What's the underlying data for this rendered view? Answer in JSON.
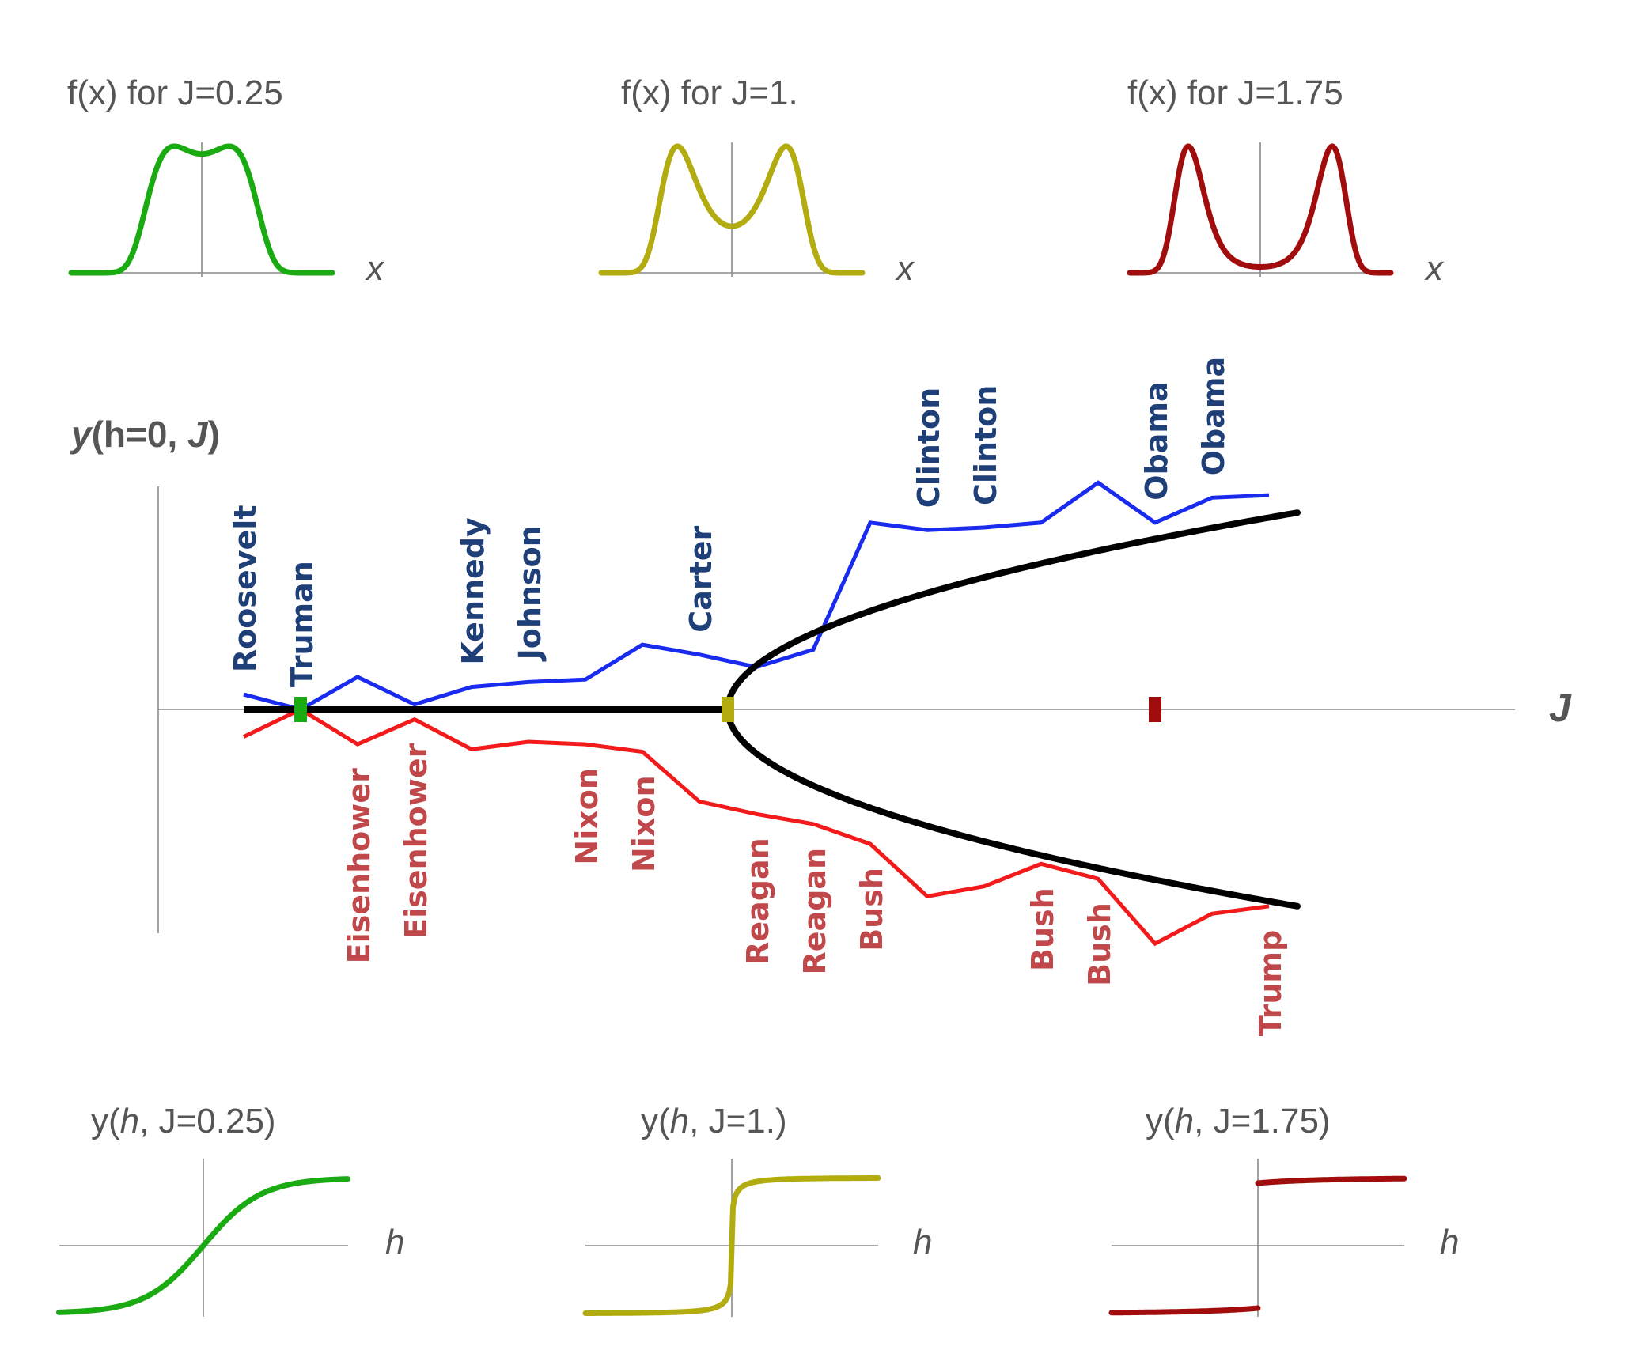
{
  "colors": {
    "j025": "#1aab12",
    "j1": "#b2ac10",
    "j175": "#a10d0d",
    "dem": "#1a2bf0",
    "rep": "#f21a1a",
    "dem_label": "#1f3f78",
    "rep_label": "#c0474a",
    "bifurcation": "#000000"
  },
  "top_panels": [
    {
      "title": "f(x) for J=0.25",
      "J": 0.25,
      "xlabel": "x",
      "color_key": "j025"
    },
    {
      "title": "f(x) for J=1.",
      "J": 1.0,
      "xlabel": "x",
      "color_key": "j1"
    },
    {
      "title": "f(x) for J=1.75",
      "J": 1.75,
      "xlabel": "x",
      "color_key": "j175"
    }
  ],
  "bottom_panels": [
    {
      "title_prefix": "y(",
      "title_var": "h",
      "title_suffix": ", J=0.25)",
      "J": 0.25,
      "xlabel": "h",
      "color_key": "j025"
    },
    {
      "title_prefix": "y(",
      "title_var": "h",
      "title_suffix": ", J=1.)",
      "J": 1.0,
      "xlabel": "h",
      "color_key": "j1"
    },
    {
      "title_prefix": "y(",
      "title_var": "h",
      "title_suffix": ", J=1.75)",
      "J": 1.75,
      "xlabel": "h",
      "color_key": "j175"
    }
  ],
  "main": {
    "ylabel_parts": [
      "y",
      "(h=0, ",
      "J",
      ")"
    ],
    "xlabel": "J",
    "markers": [
      {
        "J": 0.25,
        "color_key": "j025"
      },
      {
        "J": 1.0,
        "color_key": "j1"
      },
      {
        "J": 1.75,
        "color_key": "j175"
      }
    ]
  },
  "chart_data": {
    "type": "line",
    "xlim": [
      0.0,
      2.1
    ],
    "ylim": [
      -0.85,
      0.85
    ],
    "critical_J": 1.0,
    "series": [],
    "dem_points": [
      {
        "J": 0.15,
        "y": 0.06
      },
      {
        "J": 0.25,
        "y": 0.0
      },
      {
        "J": 0.35,
        "y": 0.13
      },
      {
        "J": 0.45,
        "y": 0.02
      },
      {
        "J": 0.55,
        "y": 0.09
      },
      {
        "J": 0.65,
        "y": 0.11
      },
      {
        "J": 0.75,
        "y": 0.12
      },
      {
        "J": 0.85,
        "y": 0.26
      },
      {
        "J": 0.95,
        "y": 0.22
      },
      {
        "J": 1.05,
        "y": 0.17
      },
      {
        "J": 1.15,
        "y": 0.24
      },
      {
        "J": 1.25,
        "y": 0.75
      },
      {
        "J": 1.35,
        "y": 0.72
      },
      {
        "J": 1.45,
        "y": 0.73
      },
      {
        "J": 1.55,
        "y": 0.75
      },
      {
        "J": 1.65,
        "y": 0.91
      },
      {
        "J": 1.75,
        "y": 0.75
      },
      {
        "J": 1.85,
        "y": 0.85
      },
      {
        "J": 1.95,
        "y": 0.86
      }
    ],
    "rep_points": [
      {
        "J": 0.15,
        "y": -0.11
      },
      {
        "J": 0.25,
        "y": 0.0
      },
      {
        "J": 0.35,
        "y": -0.14
      },
      {
        "J": 0.45,
        "y": -0.04
      },
      {
        "J": 0.55,
        "y": -0.16
      },
      {
        "J": 0.65,
        "y": -0.13
      },
      {
        "J": 0.75,
        "y": -0.14
      },
      {
        "J": 0.85,
        "y": -0.17
      },
      {
        "J": 0.95,
        "y": -0.37
      },
      {
        "J": 1.05,
        "y": -0.42
      },
      {
        "J": 1.15,
        "y": -0.46
      },
      {
        "J": 1.25,
        "y": -0.54
      },
      {
        "J": 1.35,
        "y": -0.75
      },
      {
        "J": 1.45,
        "y": -0.71
      },
      {
        "J": 1.55,
        "y": -0.62
      },
      {
        "J": 1.65,
        "y": -0.68
      },
      {
        "J": 1.75,
        "y": -0.94
      },
      {
        "J": 1.85,
        "y": -0.82
      },
      {
        "J": 1.95,
        "y": -0.79
      }
    ],
    "dem_labels": [
      {
        "text": "Roosevelt",
        "J": 0.15,
        "y": 0.06
      },
      {
        "text": "Truman",
        "J": 0.25,
        "y": 0.0
      },
      {
        "text": "Kennedy",
        "J": 0.55,
        "y": 0.09
      },
      {
        "text": "Johnson",
        "J": 0.65,
        "y": 0.11
      },
      {
        "text": "Carter",
        "J": 0.95,
        "y": 0.22
      },
      {
        "text": "Clinton",
        "J": 1.35,
        "y": 0.72
      },
      {
        "text": "Clinton",
        "J": 1.45,
        "y": 0.73
      },
      {
        "text": "Obama",
        "J": 1.75,
        "y": 0.75
      },
      {
        "text": "Obama",
        "J": 1.85,
        "y": 0.85
      }
    ],
    "rep_labels": [
      {
        "text": "Eisenhower",
        "J": 0.35,
        "y": -0.14
      },
      {
        "text": "Eisenhower",
        "J": 0.45,
        "y": -0.04
      },
      {
        "text": "Nixon",
        "J": 0.75,
        "y": -0.14
      },
      {
        "text": "Nixon",
        "J": 0.85,
        "y": -0.17
      },
      {
        "text": "Reagan",
        "J": 1.05,
        "y": -0.42
      },
      {
        "text": "Reagan",
        "J": 1.15,
        "y": -0.46
      },
      {
        "text": "Bush",
        "J": 1.25,
        "y": -0.54
      },
      {
        "text": "Bush",
        "J": 1.55,
        "y": -0.62
      },
      {
        "text": "Bush",
        "J": 1.65,
        "y": -0.68
      },
      {
        "text": "Trump",
        "J": 1.95,
        "y": -0.79
      }
    ]
  }
}
